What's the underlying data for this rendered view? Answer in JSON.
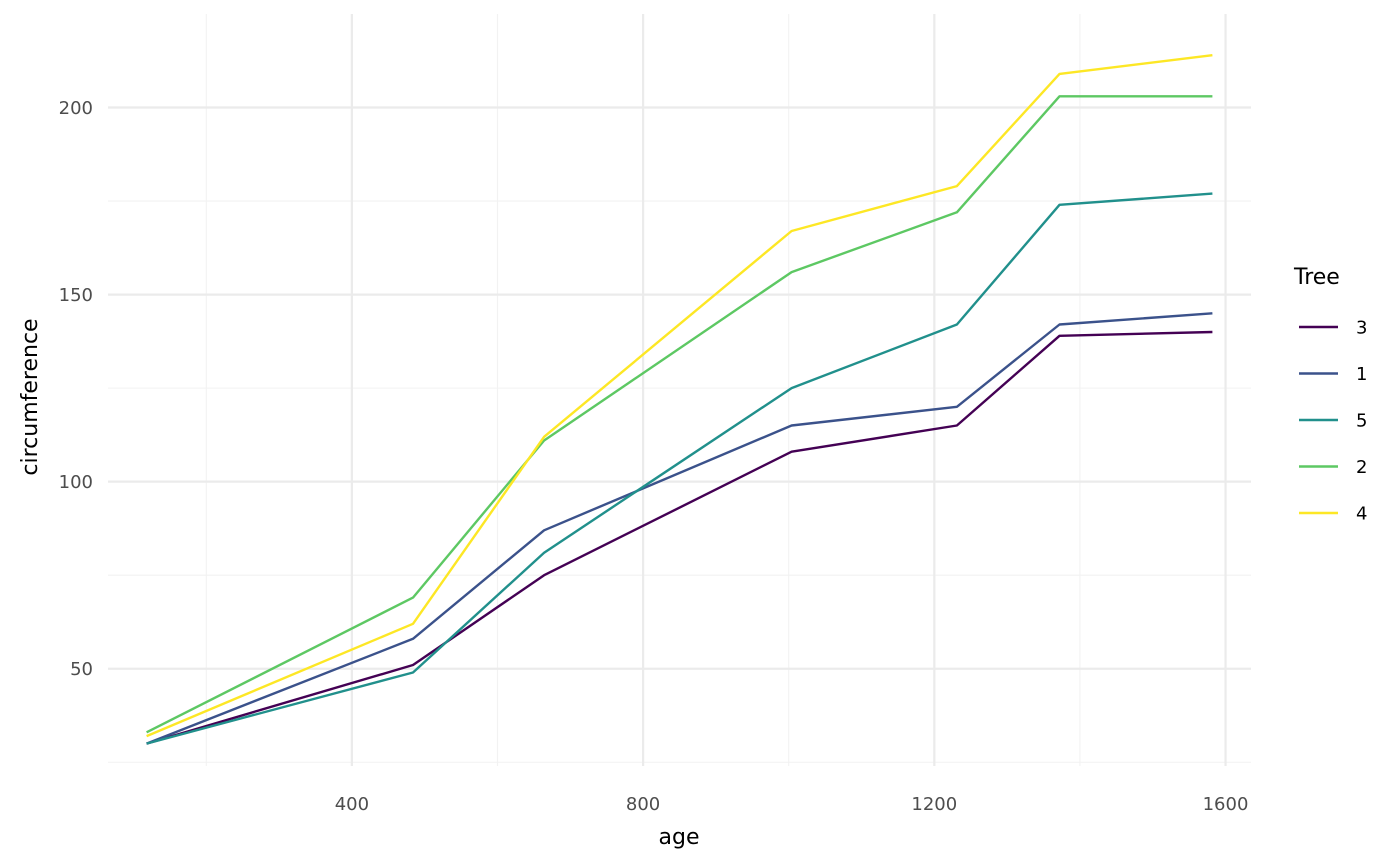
{
  "chart_data": {
    "type": "line",
    "xlabel": "age",
    "ylabel": "circumference",
    "x": [
      118,
      484,
      664,
      1004,
      1231,
      1372,
      1582
    ],
    "xlim": [
      65,
      1635
    ],
    "ylim": [
      24,
      225
    ],
    "x_ticks": [
      400,
      800,
      1200,
      1600
    ],
    "x_minor_ticks": [
      200,
      600,
      1000,
      1400
    ],
    "y_ticks": [
      50,
      100,
      150,
      200
    ],
    "y_minor_ticks": [
      25,
      75,
      125,
      175
    ],
    "grid": true,
    "legend": {
      "title": "Tree",
      "position": "right"
    },
    "series": [
      {
        "name": "3",
        "color": "#440154",
        "values": [
          30,
          51,
          75,
          108,
          115,
          139,
          140
        ]
      },
      {
        "name": "1",
        "color": "#3b528b",
        "values": [
          30,
          58,
          87,
          115,
          120,
          142,
          145
        ]
      },
      {
        "name": "5",
        "color": "#21908c",
        "values": [
          30,
          49,
          81,
          125,
          142,
          174,
          177
        ]
      },
      {
        "name": "2",
        "color": "#5dc863",
        "values": [
          33,
          69,
          111,
          156,
          172,
          203,
          203
        ]
      },
      {
        "name": "4",
        "color": "#fde725",
        "values": [
          32,
          62,
          112,
          167,
          179,
          209,
          214
        ]
      }
    ]
  }
}
